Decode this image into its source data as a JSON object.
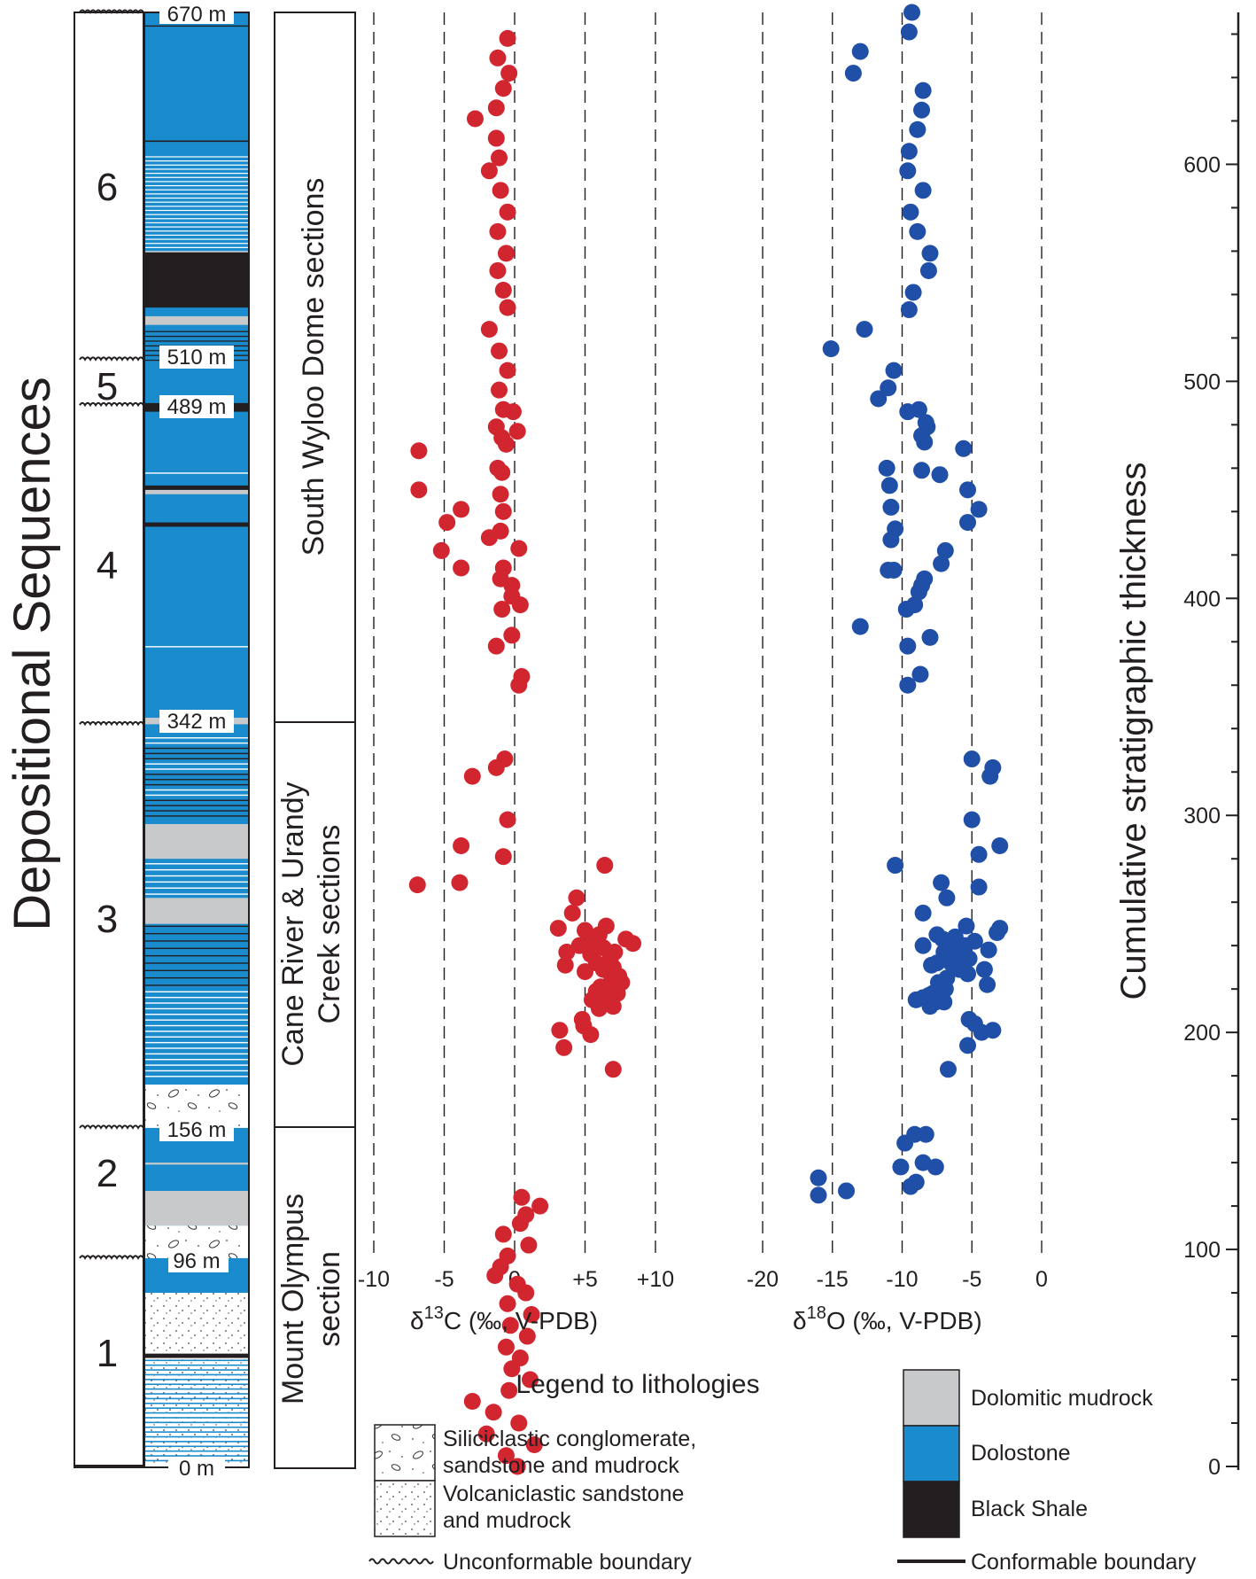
{
  "chart_data": {
    "type": "scatter",
    "title": "",
    "y_axis": {
      "label": "Cumulative stratigraphic thickness",
      "ylim": [
        0,
        670
      ],
      "ticks": [
        0,
        100,
        200,
        300,
        400,
        500,
        600
      ]
    },
    "depositional": {
      "title": "Depositional Sequences",
      "sequences": [
        "1",
        "2",
        "3",
        "4",
        "5",
        "6"
      ],
      "boundaries": [
        "0 m",
        "96 m",
        "156 m",
        "342 m",
        "489 m",
        "510 m",
        "670 m"
      ]
    },
    "sections": [
      "Mount Olympus section",
      "Cane River & Urandy Creek sections",
      "South Wyloo Dome sections"
    ],
    "carbon": {
      "xlabel": "δ13C (‰, V-PDB)",
      "xlim": [
        -10,
        10
      ],
      "tick_labels": [
        "-10",
        "-5",
        "0",
        "+5",
        "+10"
      ],
      "points": [
        [
          0.5,
          124
        ],
        [
          1.8,
          120
        ],
        [
          0.8,
          116
        ],
        [
          0.4,
          112
        ],
        [
          -0.8,
          107
        ],
        [
          1.0,
          102
        ],
        [
          -0.5,
          97
        ],
        [
          -1.0,
          92
        ],
        [
          -1.4,
          88
        ],
        [
          0.2,
          84
        ],
        [
          0.8,
          80
        ],
        [
          -0.5,
          75
        ],
        [
          1.2,
          70
        ],
        [
          -0.3,
          65
        ],
        [
          0.9,
          60
        ],
        [
          -0.6,
          55
        ],
        [
          0.4,
          50
        ],
        [
          -0.2,
          45
        ],
        [
          1.1,
          40
        ],
        [
          -0.4,
          35
        ],
        [
          -3.0,
          30
        ],
        [
          -1.5,
          25
        ],
        [
          0.3,
          20
        ],
        [
          -2.0,
          15
        ],
        [
          1.4,
          10
        ],
        [
          -0.6,
          5
        ],
        [
          0.2,
          0
        ],
        [
          -0.5,
          658
        ],
        [
          -1.2,
          649
        ],
        [
          -0.4,
          642
        ],
        [
          -0.8,
          635
        ],
        [
          -1.3,
          626
        ],
        [
          -2.8,
          621
        ],
        [
          -1.3,
          612
        ],
        [
          -1.1,
          603
        ],
        [
          -1.8,
          597
        ],
        [
          -1.0,
          588
        ],
        [
          -0.5,
          578
        ],
        [
          -1.2,
          569
        ],
        [
          -0.6,
          559
        ],
        [
          -1.2,
          551
        ],
        [
          -0.8,
          542
        ],
        [
          -0.5,
          534
        ],
        [
          -1.8,
          524
        ],
        [
          -1.1,
          514
        ],
        [
          -0.5,
          505
        ],
        [
          -1.1,
          496
        ],
        [
          -0.8,
          487
        ],
        [
          -0.1,
          486
        ],
        [
          -1.3,
          479
        ],
        [
          0.2,
          477
        ],
        [
          -0.9,
          474
        ],
        [
          -0.6,
          471
        ],
        [
          -6.8,
          468
        ],
        [
          -1.2,
          460
        ],
        [
          -0.9,
          458
        ],
        [
          -6.8,
          450
        ],
        [
          -1.0,
          448
        ],
        [
          -3.8,
          441
        ],
        [
          -0.8,
          440
        ],
        [
          -4.8,
          435
        ],
        [
          -1.0,
          431
        ],
        [
          -1.8,
          428
        ],
        [
          0.3,
          423
        ],
        [
          -5.2,
          422
        ],
        [
          -0.8,
          414
        ],
        [
          -3.8,
          414
        ],
        [
          -1.0,
          409
        ],
        [
          -0.2,
          406
        ],
        [
          -0.2,
          401
        ],
        [
          0.4,
          397
        ],
        [
          -0.9,
          395
        ],
        [
          -0.2,
          383
        ],
        [
          -1.3,
          378
        ],
        [
          0.5,
          364
        ],
        [
          0.3,
          360
        ]
      ],
      "points_cane": [
        [
          -0.7,
          326
        ],
        [
          -1.3,
          322
        ],
        [
          -3.0,
          318
        ],
        [
          -0.5,
          298
        ],
        [
          -3.8,
          286
        ],
        [
          -0.8,
          281
        ],
        [
          6.4,
          277
        ],
        [
          -6.9,
          268
        ],
        [
          -3.9,
          269
        ],
        [
          4.4,
          262
        ],
        [
          4.1,
          255
        ],
        [
          6.5,
          249
        ],
        [
          3.1,
          248
        ],
        [
          5.0,
          247
        ],
        [
          6.0,
          245
        ],
        [
          7.9,
          243
        ],
        [
          5.6,
          242
        ],
        [
          8.4,
          241
        ],
        [
          4.6,
          240
        ],
        [
          6.3,
          239
        ],
        [
          3.7,
          237
        ],
        [
          7.1,
          237
        ],
        [
          5.4,
          236
        ],
        [
          6.8,
          234
        ],
        [
          5.8,
          232
        ],
        [
          3.6,
          231
        ],
        [
          7.0,
          230
        ],
        [
          6.3,
          229
        ],
        [
          5.0,
          228
        ],
        [
          7.4,
          226
        ],
        [
          6.9,
          225
        ],
        [
          7.6,
          223
        ],
        [
          6.1,
          221
        ],
        [
          7.2,
          220
        ],
        [
          5.8,
          219
        ],
        [
          7.3,
          218
        ],
        [
          6.4,
          216
        ],
        [
          5.5,
          215
        ],
        [
          6.8,
          214
        ],
        [
          7.0,
          212
        ],
        [
          6.0,
          211
        ],
        [
          4.8,
          206
        ],
        [
          4.9,
          203
        ],
        [
          3.2,
          201
        ],
        [
          5.4,
          199
        ],
        [
          3.5,
          193
        ],
        [
          7.0,
          183
        ]
      ]
    },
    "oxygen": {
      "xlabel": "δ18O (‰, V-PDB)",
      "xlim": [
        -20,
        0
      ],
      "tick_labels": [
        "-20",
        "-15",
        "-10",
        "-5",
        "0"
      ],
      "points": [
        [
          -9.1,
          153
        ],
        [
          -8.3,
          153
        ],
        [
          -9.8,
          149
        ],
        [
          -8.5,
          140
        ],
        [
          -10.1,
          138
        ],
        [
          -7.6,
          138
        ],
        [
          -16.0,
          133
        ],
        [
          -9.0,
          131
        ],
        [
          -9.4,
          129
        ],
        [
          -14.0,
          127
        ],
        [
          -16.0,
          125
        ],
        [
          -9.3,
          670
        ],
        [
          -9.5,
          661
        ],
        [
          -13.0,
          652
        ],
        [
          -13.5,
          642
        ],
        [
          -8.5,
          634
        ],
        [
          -8.6,
          625
        ],
        [
          -8.9,
          616
        ],
        [
          -9.5,
          606
        ],
        [
          -9.6,
          597
        ],
        [
          -8.5,
          588
        ],
        [
          -9.4,
          578
        ],
        [
          -8.9,
          569
        ],
        [
          -8.0,
          559
        ],
        [
          -8.1,
          551
        ],
        [
          -9.2,
          541
        ],
        [
          -9.5,
          533
        ],
        [
          -12.7,
          524
        ],
        [
          -15.1,
          515
        ],
        [
          -10.6,
          505
        ],
        [
          -11.0,
          497
        ],
        [
          -11.7,
          492
        ],
        [
          -8.8,
          487
        ],
        [
          -9.6,
          486
        ],
        [
          -8.3,
          481
        ],
        [
          -8.2,
          479
        ],
        [
          -8.6,
          475
        ],
        [
          -8.4,
          472
        ],
        [
          -5.6,
          469
        ],
        [
          -11.1,
          460
        ],
        [
          -8.6,
          459
        ],
        [
          -7.3,
          457
        ],
        [
          -10.9,
          452
        ],
        [
          -5.3,
          450
        ],
        [
          -10.8,
          442
        ],
        [
          -4.5,
          441
        ],
        [
          -10.5,
          432
        ],
        [
          -5.3,
          435
        ],
        [
          -10.8,
          427
        ],
        [
          -6.9,
          422
        ],
        [
          -7.2,
          416
        ],
        [
          -11.0,
          413
        ],
        [
          -10.6,
          413
        ],
        [
          -8.4,
          409
        ],
        [
          -8.6,
          406
        ],
        [
          -8.8,
          403
        ],
        [
          -9.1,
          397
        ],
        [
          -9.7,
          395
        ],
        [
          -13.0,
          387
        ],
        [
          -8.0,
          382
        ],
        [
          -9.6,
          378
        ],
        [
          -8.7,
          365
        ],
        [
          -9.6,
          360
        ]
      ],
      "points_cane": [
        [
          -5.0,
          326
        ],
        [
          -3.5,
          322
        ],
        [
          -3.7,
          318
        ],
        [
          -5.0,
          298
        ],
        [
          -3.0,
          286
        ],
        [
          -4.5,
          282
        ],
        [
          -10.5,
          277
        ],
        [
          -7.2,
          269
        ],
        [
          -4.5,
          267
        ],
        [
          -6.8,
          262
        ],
        [
          -8.5,
          255
        ],
        [
          -5.4,
          249
        ],
        [
          -3.0,
          248
        ],
        [
          -7.5,
          245
        ],
        [
          -3.2,
          246
        ],
        [
          -6.2,
          244
        ],
        [
          -7.1,
          243
        ],
        [
          -4.8,
          242
        ],
        [
          -5.5,
          240
        ],
        [
          -8.5,
          240
        ],
        [
          -6.6,
          238
        ],
        [
          -3.8,
          238
        ],
        [
          -7.0,
          237
        ],
        [
          -6.0,
          236
        ],
        [
          -5.2,
          234
        ],
        [
          -7.5,
          232
        ],
        [
          -6.5,
          232
        ],
        [
          -7.9,
          231
        ],
        [
          -4.1,
          229
        ],
        [
          -5.9,
          229
        ],
        [
          -5.3,
          227
        ],
        [
          -6.8,
          225
        ],
        [
          -7.4,
          223
        ],
        [
          -3.9,
          222
        ],
        [
          -6.9,
          220
        ],
        [
          -7.8,
          218
        ],
        [
          -8.1,
          217
        ],
        [
          -8.5,
          216
        ],
        [
          -9.0,
          215
        ],
        [
          -7.6,
          214
        ],
        [
          -7.0,
          214
        ],
        [
          -8.0,
          212
        ],
        [
          -5.2,
          206
        ],
        [
          -4.8,
          204
        ],
        [
          -3.5,
          201
        ],
        [
          -4.3,
          200
        ],
        [
          -5.3,
          194
        ],
        [
          -6.7,
          183
        ]
      ]
    },
    "legend": {
      "title": "Legend to lithologies",
      "items": [
        "Siliciclastic conglomerate, sandstone and mudrock",
        "Volcaniclastic sandstone and mudrock",
        "Dolomitic mudrock",
        "Dolostone",
        "Black Shale"
      ],
      "lines": [
        "Unconformable boundary",
        "Conformable boundary"
      ]
    },
    "colors": {
      "carbon": "#d1262f",
      "oxygen": "#1f4fa6",
      "dolostone": "#1a8ccd",
      "mudrock": "#c8c9cb",
      "shale": "#231f20"
    }
  },
  "text": {
    "seq_title": "Depositional Sequences",
    "seq1": "1",
    "seq2": "2",
    "seq3": "3",
    "seq4": "4",
    "seq5": "5",
    "seq6": "6",
    "m670": "670 m",
    "m510": "510 m",
    "m489": "489 m",
    "m342": "342 m",
    "m156": "156 m",
    "m96": "96 m",
    "m0": "0 m",
    "sec_mount_1": "Mount Olympus",
    "sec_mount_2": "section",
    "sec_cane_1": "Cane River & Urandy",
    "sec_cane_2": "Creek sections",
    "sec_wyloo": "South Wyloo Dome sections",
    "c_ticks": [
      "-10",
      "-5",
      "0",
      "+5",
      "+10"
    ],
    "o_ticks": [
      "-20",
      "-15",
      "-10",
      "-5",
      "0"
    ],
    "y_ticks": [
      "0",
      "100",
      "200",
      "300",
      "400",
      "500",
      "600"
    ],
    "c_label_a": "δ",
    "c_label_sup": "13",
    "c_label_b": "C (‰, V-PDB)",
    "o_label_a": "δ",
    "o_label_sup": "18",
    "o_label_b": "O (‰, V-PDB)",
    "y_label": "Cumulative stratigraphic thickness",
    "legend_title": "Legend to lithologies",
    "leg_silic_1": "Siliciclastic conglomerate,",
    "leg_silic_2": "sandstone and mudrock",
    "leg_volc_1": "Volcaniclastic sandstone",
    "leg_volc_2": "and mudrock",
    "leg_unconf": "Unconformable boundary",
    "leg_mud": "Dolomitic mudrock",
    "leg_dolo": "Dolostone",
    "leg_shale": "Black Shale",
    "leg_conf": "Conformable boundary"
  }
}
